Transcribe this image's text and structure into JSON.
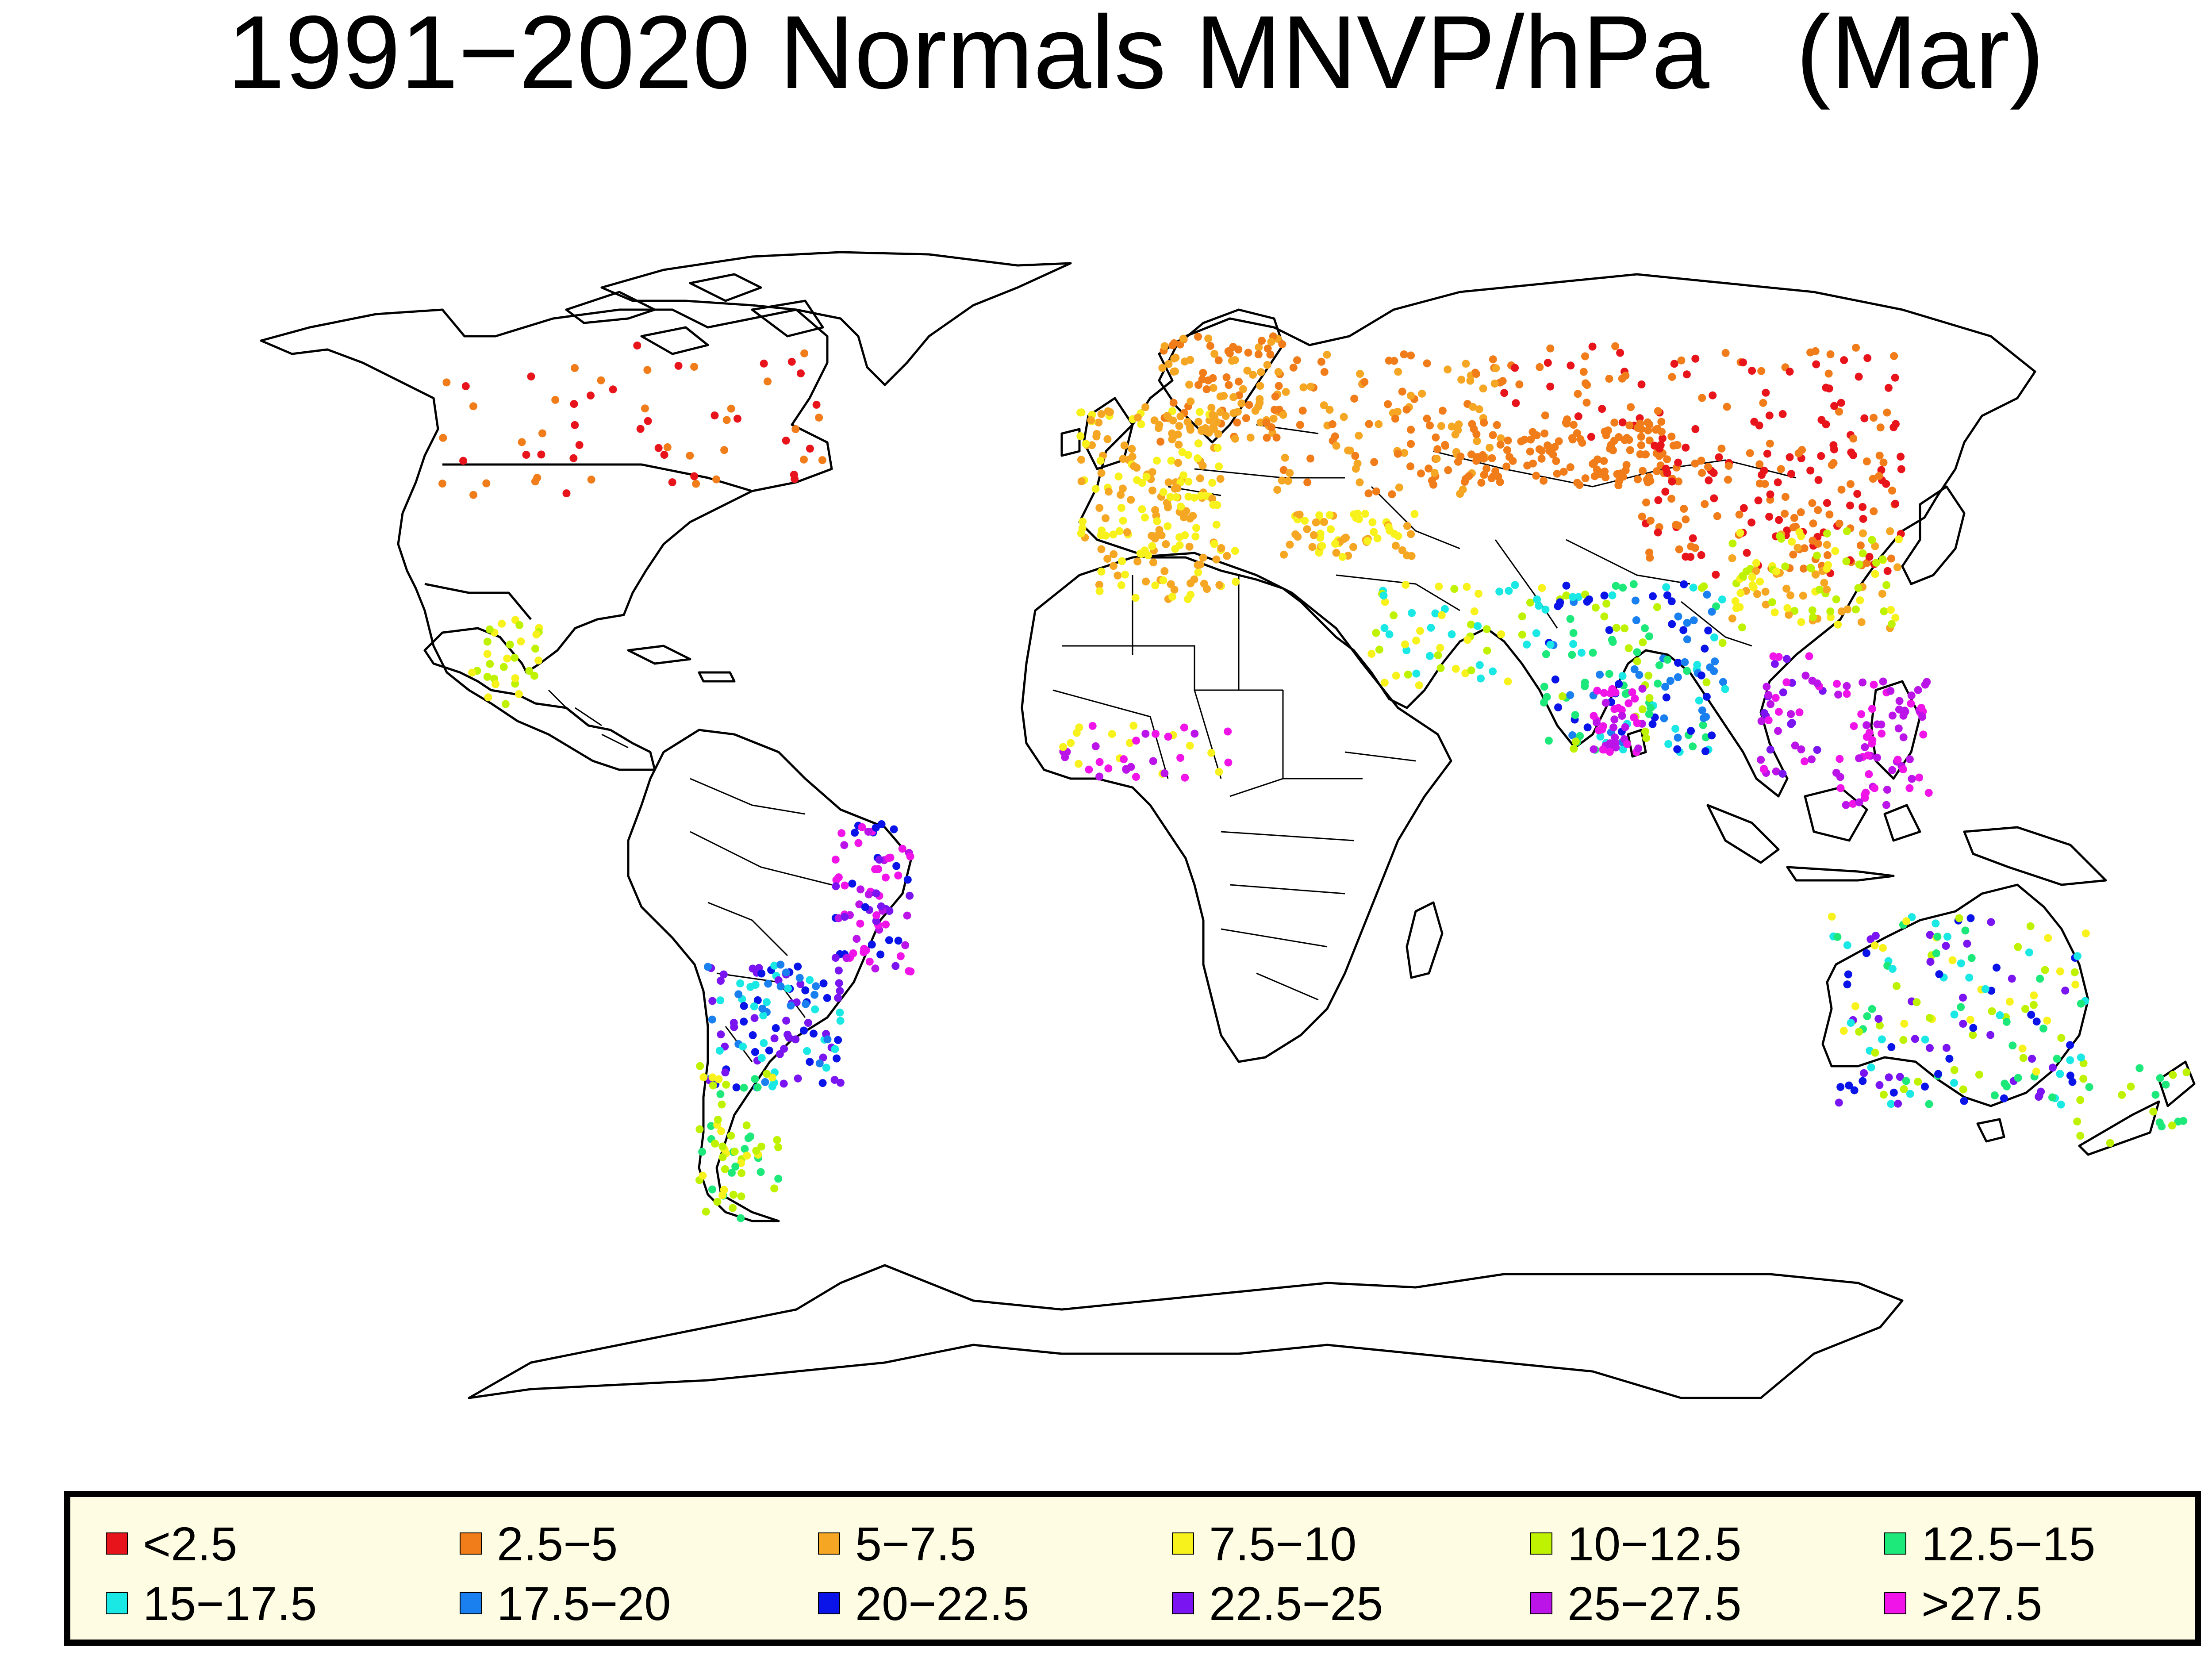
{
  "title": "1991−2020 Normals MNVP/hPa   (Mar)",
  "legend": [
    {
      "label": "<2.5",
      "color": "#e8141c"
    },
    {
      "label": "2.5−5",
      "color": "#f07c1a"
    },
    {
      "label": "5−7.5",
      "color": "#f5a623"
    },
    {
      "label": "7.5−10",
      "color": "#f8f21c"
    },
    {
      "label": "10−12.5",
      "color": "#bff200"
    },
    {
      "label": "12.5−15",
      "color": "#1de87a"
    },
    {
      "label": "15−17.5",
      "color": "#19e8e4"
    },
    {
      "label": "17.5−20",
      "color": "#1a80f0"
    },
    {
      "label": "20−22.5",
      "color": "#0a14e8"
    },
    {
      "label": "22.5−25",
      "color": "#7a14f0"
    },
    {
      "label": "25−27.5",
      "color": "#bb14e8"
    },
    {
      "label": ">27.5",
      "color": "#f014e8"
    }
  ]
}
